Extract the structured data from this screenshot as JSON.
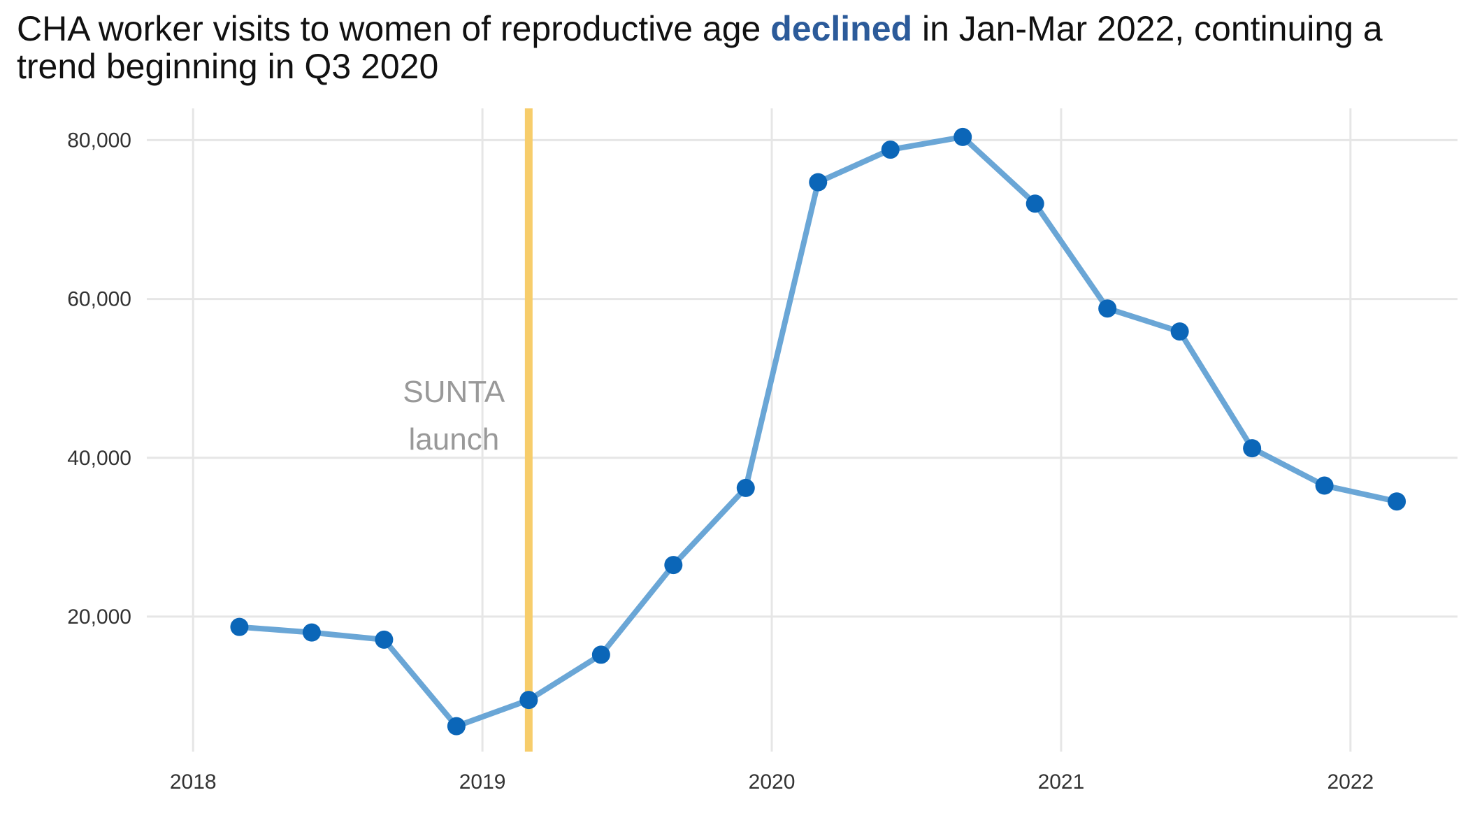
{
  "chart_data": {
    "type": "line",
    "title_parts": {
      "before": "CHA worker visits to women of reproductive age ",
      "highlight": "declined",
      "after": " in Jan-Mar 2022, continuing a trend beginning in Q3 2020"
    },
    "xlabel": "",
    "ylabel": "",
    "x_ticks": [
      2018,
      2019,
      2020,
      2021,
      2022
    ],
    "y_ticks": [
      20000,
      40000,
      60000,
      80000
    ],
    "y_tick_labels": [
      "20,000",
      "40,000",
      "60,000",
      "80,000"
    ],
    "xlim": [
      2017.84,
      2022.37
    ],
    "ylim": [
      3000,
      84000
    ],
    "grid": true,
    "legend": "none",
    "series": [
      {
        "x": [
          2018.16,
          2018.41,
          2018.66,
          2018.91,
          2019.16,
          2019.41,
          2019.66,
          2019.91,
          2020.16,
          2020.41,
          2020.66,
          2020.91,
          2021.16,
          2021.41,
          2021.66,
          2021.91,
          2022.16
        ],
        "y": [
          18700,
          18000,
          17100,
          6200,
          9500,
          15200,
          26500,
          36200,
          74700,
          78800,
          80400,
          72000,
          58800,
          55900,
          41200,
          36500,
          34500
        ]
      }
    ],
    "annotation": {
      "x": 2019.16,
      "lines": [
        "SUNTA",
        "launch"
      ]
    },
    "colors": {
      "line": "#6aa6d6",
      "marker": "#0b66b8",
      "highlight": "#2c5b9a",
      "vline": "#f7cd6b",
      "grid": "#e6e6e6"
    }
  }
}
